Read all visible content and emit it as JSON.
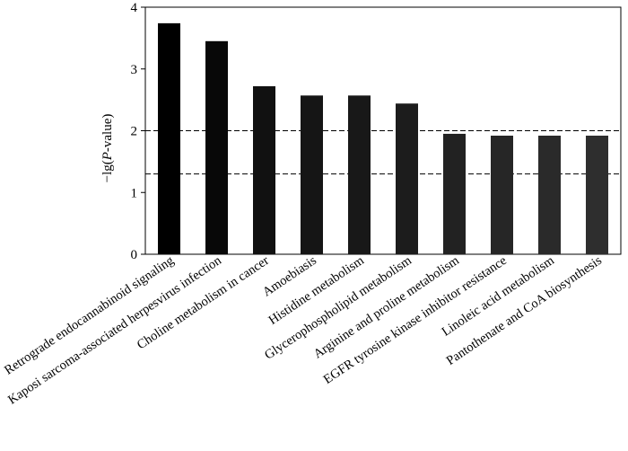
{
  "chart_data": {
    "type": "bar",
    "title": "",
    "xlabel": "",
    "ylabel": "-lg(P-value)",
    "ylabel_parts": {
      "prefix": "−lg(",
      "italic": "P",
      "suffix": "-value)"
    },
    "ylim": [
      0,
      4
    ],
    "yticks": [
      0,
      1,
      2,
      3,
      4
    ],
    "ytick_labels": [
      "0",
      "1",
      "2",
      "3",
      "4"
    ],
    "reference_lines": [
      2,
      1.3
    ],
    "categories": [
      "Retrograde endocannabinoid signaling",
      "Kaposi sarcoma-associated herpesvirus infection",
      "Choline metabolism in cancer",
      "Amoebiasis",
      "Histidine metabolism",
      "Glycerophospholipid metabolism",
      "Arginine and proline metabolism",
      "EGFR tyrosine kinase inhibitor resistance",
      "Linoleic acid metabolism",
      "Pantothenate and CoA biosynthesis"
    ],
    "values": [
      3.74,
      3.45,
      2.72,
      2.57,
      2.57,
      2.44,
      1.95,
      1.92,
      1.92,
      1.92
    ],
    "bar_colors": [
      "#000000",
      "#080808",
      "#111111",
      "#151515",
      "#181818",
      "#1c1c1c",
      "#222222",
      "#262626",
      "#2a2a2a",
      "#2e2e2e"
    ]
  }
}
